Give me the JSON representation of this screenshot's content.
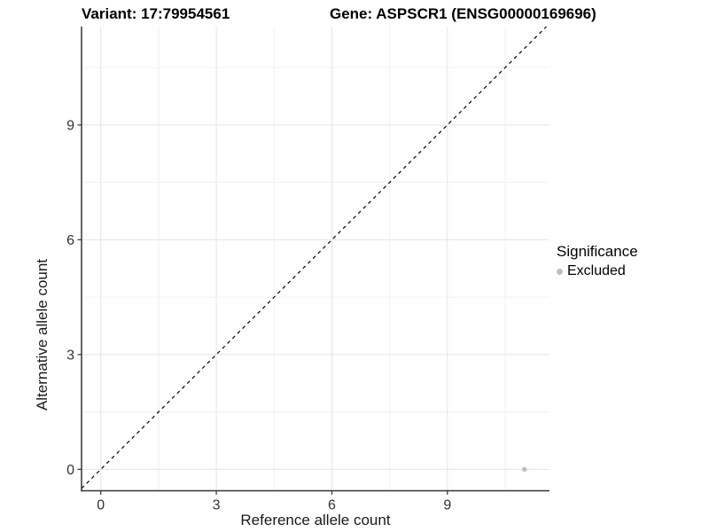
{
  "figure": {
    "title_left": "Variant: 17:79954561",
    "title_right": "Gene: ASPSCR1 (ENSG00000169696)"
  },
  "chart_data": {
    "type": "scatter",
    "title_left": "Variant: 17:79954561",
    "title_right": "Gene: ASPSCR1 (ENSG00000169696)",
    "xlabel": "Reference allele count",
    "ylabel": "Alternative allele count",
    "xlim": [
      -0.5,
      11.65
    ],
    "ylim": [
      -0.56,
      11.57
    ],
    "xticks": [
      0,
      3,
      6,
      9
    ],
    "yticks": [
      0,
      3,
      6,
      9
    ],
    "xticks_minor": [
      1.5,
      4.5,
      7.5,
      10.5
    ],
    "yticks_minor": [
      1.5,
      4.5,
      7.5,
      10.5
    ],
    "grid": "major+minor",
    "reference_line": {
      "type": "identity",
      "equation": "y = x",
      "style": "dashed",
      "color": "#000000"
    },
    "series": [
      {
        "name": "Excluded",
        "color": "#bebebe",
        "points": [
          {
            "x": 11,
            "y": 0
          }
        ]
      }
    ],
    "legend": {
      "title": "Significance",
      "position": "right",
      "entries": [
        {
          "label": "Excluded",
          "color": "#bebebe"
        }
      ]
    }
  },
  "colors": {
    "background": "#ffffff",
    "grid_major": "#e4e4e4",
    "grid_minor": "#f0f0f0",
    "axis_line": "#333333",
    "tick_mark": "#333333",
    "tick_label": "#333333",
    "point": "#bebebe",
    "title_text": "#000000"
  }
}
